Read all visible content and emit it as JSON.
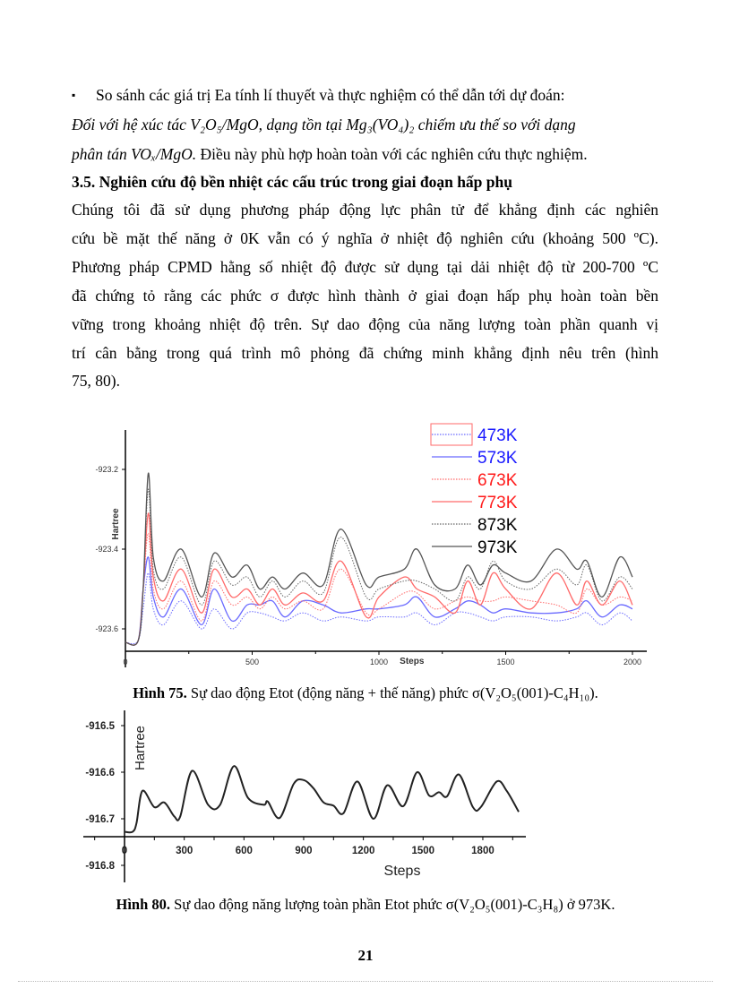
{
  "text": {
    "bullet": "▪",
    "line1": "So sánh các giá trị Ea tính lí thuyết và thực nghiệm  có thể dẫn tới dự đoán:",
    "line2": "Đối với hệ xúc tác V₂O₅/MgO, dạng tồn tại Mg₃(VO₄)₂ chiếm ưu thế so với dạng",
    "line3a": "phân tán VOₓ/MgO.",
    "line3b": " Điều này phù hợp hoàn toàn với các nghiên  cứu thực nghiệm.",
    "heading": "3.5. Nghiên cứu độ bền nhiệt  các cấu trúc trong giai đoạn hấp phụ",
    "para": [
      "Chúng tôi đã sử dụng phương pháp động lực phân tử để khẳng định các nghiên",
      "cứu bề mặt thế năng ở 0K vẫn có ý nghĩa ở nhiệt độ nghiên cứu (khoảng 500 ºC).",
      "Phương pháp CPMD hằng số nhiệt độ được sử dụng tại dải nhiệt độ từ 200-700 ºC",
      "đã chứng tỏ rằng các phức σ được hình thành ở giai đoạn hấp phụ hoàn toàn bền",
      "vững trong khoảng nhiệt độ trên. Sự dao động của năng lượng toàn phần quanh vị",
      "trí cân bằng trong quá trình mô phỏng đã chứng minh khẳng định nêu trên (hình"
    ],
    "para_last": "75, 80).",
    "caption1_label": "Hình 75.",
    "caption1_text": " Sự dao động Etot (động năng + thế năng) phức σ(V₂O₅(001)-C₄H₁₀).",
    "caption2_label": "Hình 80.",
    "caption2_text": " Sự dao động năng lượng toàn phần Etot phức σ(V₂O₅(001)-C₃H₈) ở 973K.",
    "page_number": "21"
  },
  "chart_data": [
    {
      "type": "line",
      "xlabel": "Steps",
      "ylabel": "Hartree",
      "xlim": [
        0,
        2050
      ],
      "ylim": [
        -923.65,
        -923.1
      ],
      "xticks": [
        "0",
        "500",
        "1000",
        "1500",
        "2000"
      ],
      "yticks": [
        "-923.2",
        "-923.4",
        "-923.6"
      ],
      "legend_placement": "top-right",
      "x": [
        0,
        50,
        70,
        90,
        110,
        150,
        220,
        300,
        350,
        420,
        480,
        530,
        580,
        630,
        700,
        780,
        850,
        950,
        1000,
        1100,
        1150,
        1220,
        1300,
        1350,
        1400,
        1450,
        1500,
        1600,
        1700,
        1780,
        1820,
        1880,
        1950,
        2000
      ],
      "series": [
        {
          "name": "473K",
          "color": "#6a6aff",
          "style": "dotted",
          "label_color": "#1a1aff",
          "values": [
            -923.634,
            -923.63,
            -923.55,
            -923.46,
            -923.55,
            -923.59,
            -923.53,
            -923.6,
            -923.55,
            -923.6,
            -923.56,
            -923.56,
            -923.57,
            -923.58,
            -923.56,
            -923.58,
            -923.57,
            -923.58,
            -923.57,
            -923.57,
            -923.56,
            -923.59,
            -923.56,
            -923.56,
            -923.57,
            -923.58,
            -923.57,
            -923.57,
            -923.58,
            -923.57,
            -923.56,
            -923.59,
            -923.56,
            -923.58
          ]
        },
        {
          "name": "573K",
          "color": "#6a6aff",
          "style": "solid",
          "label_color": "#1a1aff",
          "values": [
            -923.634,
            -923.63,
            -923.5,
            -923.42,
            -923.52,
            -923.57,
            -923.5,
            -923.59,
            -923.5,
            -923.58,
            -923.54,
            -923.54,
            -923.53,
            -923.57,
            -923.53,
            -923.54,
            -923.56,
            -923.55,
            -923.55,
            -923.54,
            -923.52,
            -923.57,
            -923.55,
            -923.53,
            -923.54,
            -923.56,
            -923.55,
            -923.56,
            -923.56,
            -923.55,
            -923.53,
            -923.57,
            -923.54,
            -923.55
          ]
        },
        {
          "name": "673K",
          "color": "#ff6a6a",
          "style": "dotted",
          "label_color": "#ff1a1a",
          "values": [
            -923.634,
            -923.63,
            -923.5,
            -923.36,
            -923.5,
            -923.55,
            -923.48,
            -923.58,
            -923.48,
            -923.54,
            -923.52,
            -923.55,
            -923.52,
            -923.55,
            -923.53,
            -923.55,
            -923.45,
            -923.56,
            -923.55,
            -923.51,
            -923.51,
            -923.55,
            -923.53,
            -923.52,
            -923.53,
            -923.53,
            -923.52,
            -923.53,
            -923.54,
            -923.56,
            -923.5,
            -923.54,
            -923.52,
            -923.53
          ]
        },
        {
          "name": "773K",
          "color": "#ff6a6a",
          "style": "solid",
          "label_color": "#ff1a1a",
          "values": [
            -923.634,
            -923.63,
            -923.5,
            -923.31,
            -923.47,
            -923.53,
            -923.45,
            -923.56,
            -923.45,
            -923.52,
            -923.5,
            -923.54,
            -923.5,
            -923.54,
            -923.51,
            -923.53,
            -923.43,
            -923.57,
            -923.52,
            -923.47,
            -923.5,
            -923.52,
            -923.56,
            -923.48,
            -923.54,
            -923.46,
            -923.5,
            -923.55,
            -923.46,
            -923.54,
            -923.48,
            -923.54,
            -923.48,
            -923.54
          ]
        },
        {
          "name": "873K",
          "color": "#666666",
          "style": "dotted",
          "label_color": "#000000",
          "values": [
            -923.634,
            -923.63,
            -923.5,
            -923.25,
            -923.45,
            -923.5,
            -923.42,
            -923.54,
            -923.43,
            -923.49,
            -923.47,
            -923.52,
            -923.48,
            -923.52,
            -923.48,
            -923.51,
            -923.37,
            -923.52,
            -923.5,
            -923.48,
            -923.48,
            -923.5,
            -923.53,
            -923.47,
            -923.5,
            -923.43,
            -923.48,
            -923.5,
            -923.45,
            -923.49,
            -923.44,
            -923.53,
            -923.47,
            -923.5
          ]
        },
        {
          "name": "973K",
          "color": "#555555",
          "style": "solid",
          "label_color": "#000000",
          "values": [
            -923.634,
            -923.63,
            -923.5,
            -923.21,
            -923.42,
            -923.48,
            -923.4,
            -923.52,
            -923.41,
            -923.47,
            -923.44,
            -923.5,
            -923.47,
            -923.5,
            -923.46,
            -923.49,
            -923.35,
            -923.49,
            -923.47,
            -923.45,
            -923.4,
            -923.49,
            -923.5,
            -923.44,
            -923.49,
            -923.44,
            -923.46,
            -923.48,
            -923.4,
            -923.45,
            -923.43,
            -923.52,
            -923.42,
            -923.47
          ]
        }
      ]
    },
    {
      "type": "line",
      "xlabel": "Steps",
      "ylabel": "Hartree",
      "xlim": [
        -200,
        2000
      ],
      "ylim": [
        -916.85,
        -916.47
      ],
      "xticks": [
        "0",
        "300",
        "600",
        "900",
        "1200",
        "1500",
        "1800"
      ],
      "yticks": [
        "-916.5",
        "-916.6",
        "-916.7",
        "-916.8"
      ],
      "color": "#222222",
      "x": [
        0,
        40,
        60,
        90,
        150,
        200,
        250,
        280,
        340,
        420,
        480,
        550,
        620,
        700,
        720,
        780,
        850,
        900,
        950,
        1000,
        1050,
        1100,
        1170,
        1250,
        1320,
        1400,
        1470,
        1530,
        1580,
        1620,
        1680,
        1750,
        1790,
        1870,
        1920,
        1980
      ],
      "values": [
        -916.728,
        -916.728,
        -916.71,
        -916.64,
        -916.675,
        -916.665,
        -916.695,
        -916.695,
        -916.597,
        -916.67,
        -916.67,
        -916.587,
        -916.655,
        -916.67,
        -916.663,
        -916.698,
        -916.625,
        -916.617,
        -916.635,
        -916.665,
        -916.672,
        -916.688,
        -916.62,
        -916.7,
        -916.628,
        -916.673,
        -916.6,
        -916.65,
        -916.643,
        -916.652,
        -916.605,
        -916.675,
        -916.675,
        -916.62,
        -916.64,
        -916.685
      ]
    }
  ]
}
